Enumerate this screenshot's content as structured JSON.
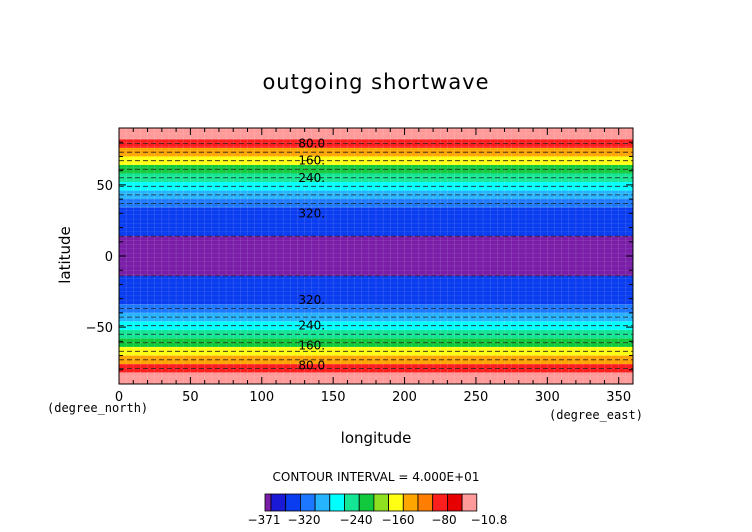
{
  "chart_data": {
    "type": "heatmap",
    "title": "outgoing shortwave",
    "xlabel": "longitude",
    "ylabel": "latitude",
    "x_unit": "(degree_east)",
    "y_unit": "(degree_north)",
    "xlim": [
      0,
      360
    ],
    "ylim": [
      -90,
      90
    ],
    "x_ticks": [
      0,
      50,
      100,
      150,
      200,
      250,
      300,
      350
    ],
    "y_ticks": [
      -50,
      0,
      50
    ],
    "x_tick_labels": [
      "0",
      "50",
      "100",
      "150",
      "200",
      "250",
      "300",
      "350"
    ],
    "y_tick_labels": [
      "−50",
      "0",
      "50"
    ],
    "contour_interval_text": "CONTOUR INTERVAL = 4.000E+01",
    "contour_interval": 40,
    "range": [
      -371,
      -10.8
    ],
    "colorbar": {
      "colors": [
        "#7a1ea8",
        "#1a1ad6",
        "#0a3cf0",
        "#1e78ff",
        "#26b4ff",
        "#00ffff",
        "#14e696",
        "#12c83c",
        "#8fe020",
        "#ffff14",
        "#ffa500",
        "#ff7d00",
        "#ff1e1e",
        "#e60000",
        "#ff9a9a"
      ],
      "labels": [
        "−371",
        "−320",
        "−240",
        "−160",
        "−80",
        "−10.8"
      ]
    },
    "latitude_bands": [
      {
        "from": 82,
        "to": 90,
        "color": "#ff9a9a"
      },
      {
        "from": 76,
        "to": 82,
        "color": "#ff1e1e"
      },
      {
        "from": 70,
        "to": 76,
        "color": "#ffa500"
      },
      {
        "from": 64,
        "to": 70,
        "color": "#ffff14"
      },
      {
        "from": 58,
        "to": 64,
        "color": "#12c83c"
      },
      {
        "from": 52,
        "to": 58,
        "color": "#14e696"
      },
      {
        "from": 46,
        "to": 52,
        "color": "#00ffff"
      },
      {
        "from": 40,
        "to": 46,
        "color": "#26b4ff"
      },
      {
        "from": 34,
        "to": 40,
        "color": "#1e78ff"
      },
      {
        "from": 14,
        "to": 34,
        "color": "#0a3cf0"
      },
      {
        "from": -14,
        "to": 14,
        "color": "#7a1ea8"
      },
      {
        "from": -34,
        "to": -14,
        "color": "#0a3cf0"
      },
      {
        "from": -40,
        "to": -34,
        "color": "#1e78ff"
      },
      {
        "from": -46,
        "to": -40,
        "color": "#26b4ff"
      },
      {
        "from": -52,
        "to": -46,
        "color": "#00ffff"
      },
      {
        "from": -58,
        "to": -52,
        "color": "#14e696"
      },
      {
        "from": -64,
        "to": -58,
        "color": "#12c83c"
      },
      {
        "from": -70,
        "to": -64,
        "color": "#ffff14"
      },
      {
        "from": -76,
        "to": -70,
        "color": "#ffa500"
      },
      {
        "from": -82,
        "to": -76,
        "color": "#ff1e1e"
      },
      {
        "from": -90,
        "to": -82,
        "color": "#ff9a9a"
      }
    ],
    "contour_lines_lat": [
      79,
      73,
      67,
      61,
      55,
      49,
      43,
      37,
      14,
      -14,
      -37,
      -43,
      -49,
      -55,
      -61,
      -67,
      -73,
      -79
    ],
    "contour_labels": [
      {
        "text": "80.0",
        "lon": 135,
        "lat": 79
      },
      {
        "text": "160.",
        "lon": 135,
        "lat": 67
      },
      {
        "text": "240.",
        "lon": 135,
        "lat": 55
      },
      {
        "text": "320.",
        "lon": 135,
        "lat": 30
      },
      {
        "text": "320.",
        "lon": 135,
        "lat": -31
      },
      {
        "text": "240.",
        "lon": 135,
        "lat": -49
      },
      {
        "text": "160.",
        "lon": 135,
        "lat": -63
      },
      {
        "text": "80.0",
        "lon": 135,
        "lat": -77
      }
    ]
  }
}
